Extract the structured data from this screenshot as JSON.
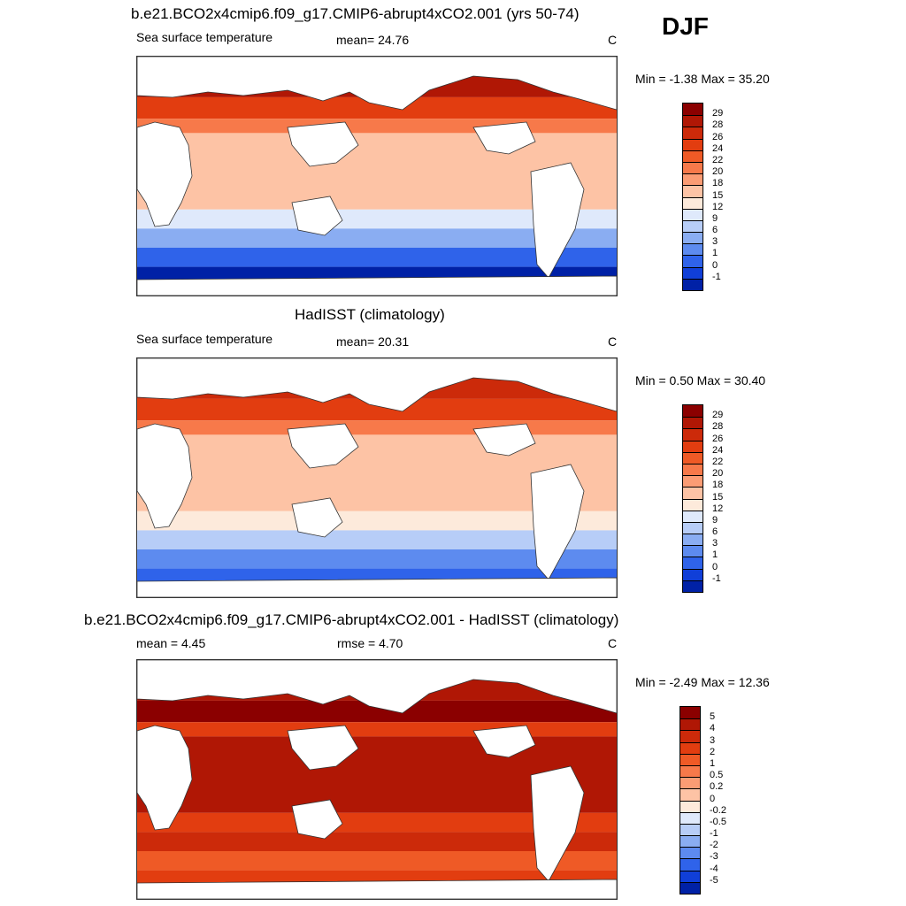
{
  "season": "DJF",
  "panels": [
    {
      "id": "model",
      "title": "b.e21.BCO2x4cmip6.f09_g17.CMIP6-abrupt4xCO2.001 (yrs 50-74)",
      "left_label": "Sea surface temperature",
      "center_label": "mean=  24.76",
      "units": "C",
      "minmax": "Min =  -1.38 Max =  35.20",
      "colorbar_labels": [
        "29",
        "28",
        "26",
        "24",
        "22",
        "20",
        "18",
        "15",
        "12",
        "9",
        "6",
        "3",
        "1",
        "0",
        "-1"
      ],
      "colorbar_colors": [
        "#8b0000",
        "#b01705",
        "#cc2a0a",
        "#e23d10",
        "#ef5a26",
        "#f7794a",
        "#fb9c74",
        "#fdc3a5",
        "#fdeadb",
        "#dfe9fb",
        "#b7cdf7",
        "#8aadf2",
        "#5d8bef",
        "#2f63ea",
        "#103fd8",
        "#0021a6"
      ],
      "ocean_palette": [
        "#8b0000",
        "#b01705",
        "#e23d10",
        "#f7794a",
        "#fdc3a5",
        "#dfe9fb",
        "#8aadf2",
        "#2f63ea",
        "#0021a6"
      ]
    },
    {
      "id": "obs",
      "title": "HadISST (climatology)",
      "left_label": "Sea surface temperature",
      "center_label": "mean=  20.31",
      "units": "C",
      "minmax": "Min =   0.50 Max =  30.40",
      "colorbar_labels": [
        "29",
        "28",
        "26",
        "24",
        "22",
        "20",
        "18",
        "15",
        "12",
        "9",
        "6",
        "3",
        "1",
        "0",
        "-1"
      ],
      "colorbar_colors": [
        "#8b0000",
        "#b01705",
        "#cc2a0a",
        "#e23d10",
        "#ef5a26",
        "#f7794a",
        "#fb9c74",
        "#fdc3a5",
        "#fdeadb",
        "#dfe9fb",
        "#b7cdf7",
        "#8aadf2",
        "#5d8bef",
        "#2f63ea",
        "#103fd8",
        "#0021a6"
      ],
      "ocean_palette": [
        "#b01705",
        "#cc2a0a",
        "#e23d10",
        "#f7794a",
        "#fdc3a5",
        "#fdeadb",
        "#b7cdf7",
        "#5d8bef",
        "#2f63ea"
      ]
    },
    {
      "id": "diff",
      "title": "b.e21.BCO2x4cmip6.f09_g17.CMIP6-abrupt4xCO2.001 - HadISST (climatology)",
      "left_label": "mean =   4.45",
      "center_label": "rmse =   4.70",
      "units": "C",
      "minmax": "Min =  -2.49 Max =  12.36",
      "colorbar_labels": [
        "5",
        "4",
        "3",
        "2",
        "1",
        "0.5",
        "0.2",
        "0",
        "-0.2",
        "-0.5",
        "-1",
        "-2",
        "-3",
        "-4",
        "-5"
      ],
      "colorbar_colors": [
        "#8b0000",
        "#b01705",
        "#cc2a0a",
        "#e23d10",
        "#ef5a26",
        "#f7794a",
        "#fb9c74",
        "#fdc3a5",
        "#fdeadb",
        "#dfe9fb",
        "#b7cdf7",
        "#8aadf2",
        "#5d8bef",
        "#2f63ea",
        "#103fd8",
        "#0021a6"
      ],
      "ocean_palette": [
        "#cc2a0a",
        "#b01705",
        "#8b0000",
        "#e23d10",
        "#b01705",
        "#e23d10",
        "#cc2a0a",
        "#ef5a26",
        "#e23d10"
      ]
    }
  ]
}
